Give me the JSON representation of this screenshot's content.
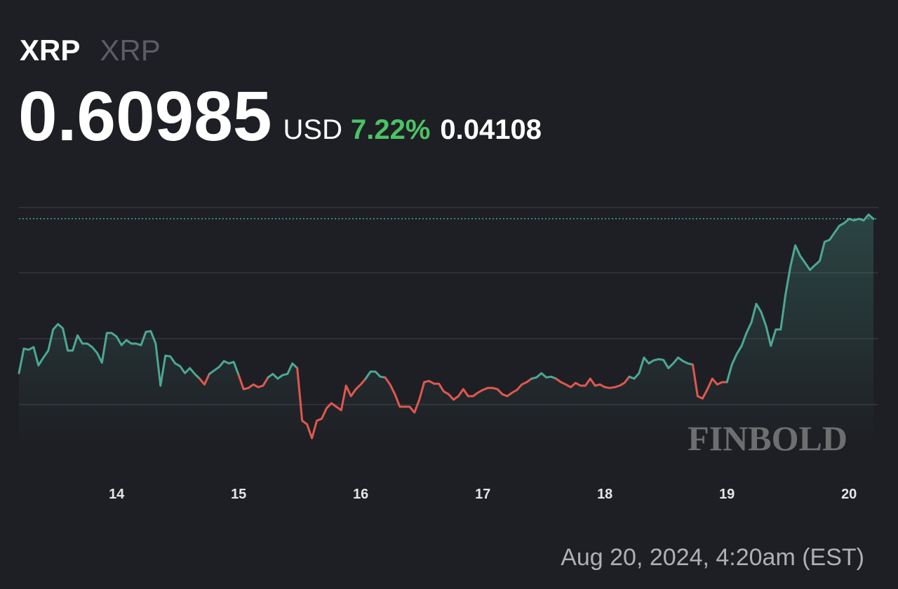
{
  "chart_data": {
    "type": "line",
    "title": "XRP",
    "subtitle": "XRP",
    "price": 0.60985,
    "currency": "USD",
    "change_percent": {
      "value": 7.22,
      "label": "7.22%"
    },
    "change": 0.04108,
    "timestamp": "Aug 20, 2024, 4:20am (EST)",
    "watermark": "FINBOLD",
    "up_color": "#4ca893",
    "down_color": "#e0584f",
    "xlim": [
      13.2,
      20.2
    ],
    "xticks": [
      14,
      15,
      16,
      17,
      18,
      19,
      20
    ],
    "ylim": [
      0.5526,
      0.6127
    ],
    "x": [
      13.2,
      13.24,
      13.28,
      13.32,
      13.36,
      13.4,
      13.44,
      13.48,
      13.52,
      13.56,
      13.6,
      13.64,
      13.68,
      13.72,
      13.76,
      13.8,
      13.84,
      13.88,
      13.92,
      13.96,
      14,
      14.04,
      14.08,
      14.12,
      14.16,
      14.2,
      14.24,
      14.28,
      14.32,
      14.36,
      14.4,
      14.44,
      14.48,
      14.52,
      14.56,
      14.6,
      14.64,
      14.68,
      14.72,
      14.76,
      14.8,
      14.84,
      14.88,
      14.92,
      14.96,
      15,
      15.04,
      15.08,
      15.12,
      15.16,
      15.2,
      15.24,
      15.28,
      15.32,
      15.36,
      15.4,
      15.44,
      15.48,
      15.52,
      15.56,
      15.6,
      15.64,
      15.68,
      15.72,
      15.76,
      15.8,
      15.84,
      15.88,
      15.92,
      15.96,
      16,
      16.04,
      16.08,
      16.12,
      16.16,
      16.2,
      16.24,
      16.28,
      16.32,
      16.36,
      16.4,
      16.44,
      16.48,
      16.52,
      16.56,
      16.6,
      16.64,
      16.68,
      16.72,
      16.76,
      16.8,
      16.84,
      16.88,
      16.92,
      16.96,
      17,
      17.04,
      17.08,
      17.12,
      17.16,
      17.2,
      17.24,
      17.28,
      17.32,
      17.36,
      17.4,
      17.44,
      17.48,
      17.52,
      17.56,
      17.6,
      17.64,
      17.68,
      17.72,
      17.76,
      17.8,
      17.84,
      17.88,
      17.92,
      17.96,
      18,
      18.04,
      18.08,
      18.12,
      18.16,
      18.2,
      18.24,
      18.28,
      18.32,
      18.36,
      18.4,
      18.44,
      18.48,
      18.52,
      18.56,
      18.6,
      18.64,
      18.68,
      18.72,
      18.76,
      18.8,
      18.84,
      18.88,
      18.92,
      18.96,
      19,
      19.04,
      19.08,
      19.12,
      19.16,
      19.2,
      19.24,
      19.28,
      19.32,
      19.36,
      19.4,
      19.44,
      19.48,
      19.52,
      19.56,
      19.6,
      19.64,
      19.68,
      19.72,
      19.76,
      19.8,
      19.84,
      19.88,
      19.92,
      19.96,
      20,
      20.04,
      20.08,
      20.12,
      20.16,
      20.2
    ],
    "values": [
      0.5702,
      0.5765,
      0.5762,
      0.5769,
      0.5722,
      0.5742,
      0.576,
      0.5814,
      0.5828,
      0.5817,
      0.576,
      0.576,
      0.5799,
      0.5778,
      0.5778,
      0.5769,
      0.5754,
      0.5729,
      0.5805,
      0.5805,
      0.5796,
      0.5774,
      0.5787,
      0.5778,
      0.5778,
      0.5774,
      0.5808,
      0.581,
      0.5778,
      0.567,
      0.5747,
      0.5745,
      0.5727,
      0.572,
      0.5702,
      0.5715,
      0.57,
      0.5688,
      0.5673,
      0.57,
      0.5709,
      0.5718,
      0.5733,
      0.5727,
      0.5731,
      0.5697,
      0.5661,
      0.5664,
      0.5673,
      0.5666,
      0.567,
      0.5691,
      0.57,
      0.5688,
      0.5697,
      0.57,
      0.5727,
      0.5715,
      0.558,
      0.5571,
      0.5535,
      0.558,
      0.5585,
      0.5612,
      0.5625,
      0.5616,
      0.5607,
      0.567,
      0.5643,
      0.5661,
      0.5673,
      0.5688,
      0.5706,
      0.5706,
      0.5693,
      0.5691,
      0.5673,
      0.5648,
      0.5616,
      0.5616,
      0.5616,
      0.5601,
      0.5634,
      0.5679,
      0.5682,
      0.5675,
      0.5675,
      0.5655,
      0.5648,
      0.5634,
      0.5643,
      0.5661,
      0.5643,
      0.5643,
      0.5652,
      0.5659,
      0.5664,
      0.5664,
      0.5661,
      0.5648,
      0.5643,
      0.5652,
      0.5659,
      0.5673,
      0.5679,
      0.5688,
      0.5691,
      0.5702,
      0.5691,
      0.5693,
      0.5688,
      0.5679,
      0.5673,
      0.5666,
      0.5677,
      0.567,
      0.567,
      0.5688,
      0.567,
      0.5673,
      0.5666,
      0.5664,
      0.5666,
      0.567,
      0.5677,
      0.5693,
      0.5688,
      0.5702,
      0.5742,
      0.5727,
      0.5735,
      0.5738,
      0.5736,
      0.5715,
      0.5727,
      0.5742,
      0.5733,
      0.5727,
      0.5724,
      0.5643,
      0.5637,
      0.5661,
      0.5688,
      0.5673,
      0.5679,
      0.5679,
      0.5724,
      0.5751,
      0.5772,
      0.5805,
      0.5832,
      0.588,
      0.5859,
      0.5823,
      0.5772,
      0.5814,
      0.5814,
      0.5904,
      0.5976,
      0.603,
      0.6003,
      0.5985,
      0.5967,
      0.5979,
      0.599,
      0.6039,
      0.6044,
      0.6062,
      0.608,
      0.6087,
      0.6098,
      0.6094,
      0.6098,
      0.6094,
      0.6109,
      0.6098
    ]
  }
}
